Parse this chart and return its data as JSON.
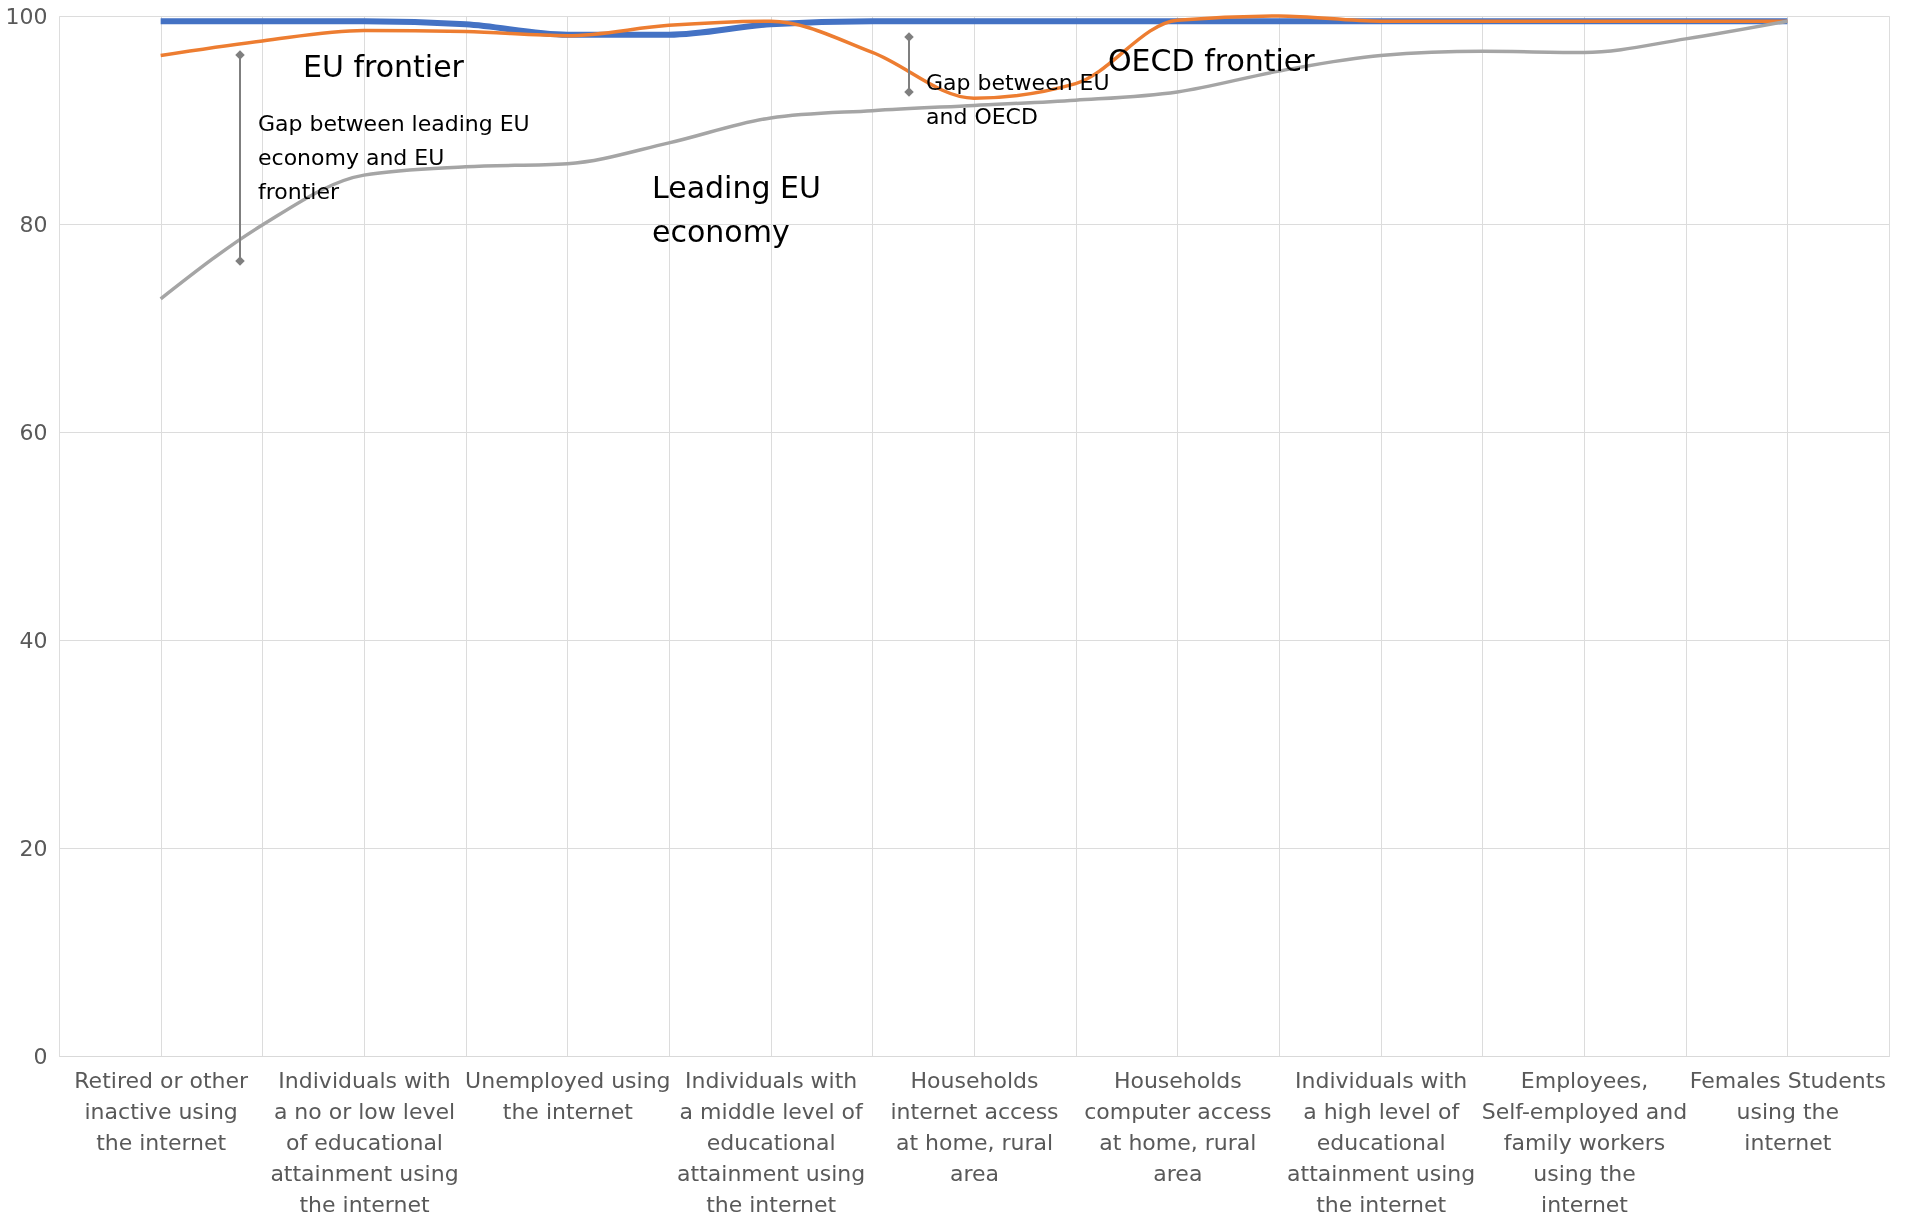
{
  "chart_data": {
    "type": "line",
    "categories": [
      "Retired or other inactive using the internet",
      null,
      "Individuals with a no or low level of educational attainment using the internet",
      null,
      "Unemployed using the internet",
      null,
      "Individuals with a middle level of educational attainment using the internet",
      null,
      "Households internet access at home, rural area",
      null,
      "Households computer access at home, rural area",
      null,
      "Individuals with a high level of educational attainment using the internet",
      null,
      "Employees, Self-employed and family workers using the internet",
      null,
      "Females Students using the internet"
    ],
    "series": [
      {
        "color": "#4472c4",
        "values": [
          99.5,
          99.5,
          99.5,
          99.2,
          98.2,
          98.2,
          99.2,
          99.5,
          99.5,
          99.5,
          99.5,
          99.5,
          99.5,
          99.5,
          99.5,
          99.5,
          99.5
        ]
      },
      {
        "color": "#ed7d31",
        "values": [
          96.2,
          97.6,
          98.6,
          98.5,
          98.1,
          99.1,
          99.5,
          96.5,
          92.1,
          93.5,
          99.6,
          100,
          99.5,
          99.5,
          99.5,
          99.5,
          99.5
        ]
      },
      {
        "color": "#a5a5a5",
        "values": [
          72.8,
          79.9,
          84.7,
          85.5,
          85.8,
          87.8,
          90.2,
          90.9,
          91.4,
          91.9,
          92.7,
          94.7,
          96.2,
          96.6,
          96.5,
          97.8,
          99.5
        ]
      }
    ],
    "ylim": [
      0,
      100
    ],
    "yticks": [
      0,
      20,
      40,
      60,
      80,
      100
    ],
    "grid": true,
    "line_style": "solid",
    "marker": "none",
    "annotations": [
      "EU frontier",
      "OECD frontier",
      "Leading EU economy",
      "Gap between leading EU economy and EU frontier",
      "Gap between EU and OECD"
    ]
  }
}
